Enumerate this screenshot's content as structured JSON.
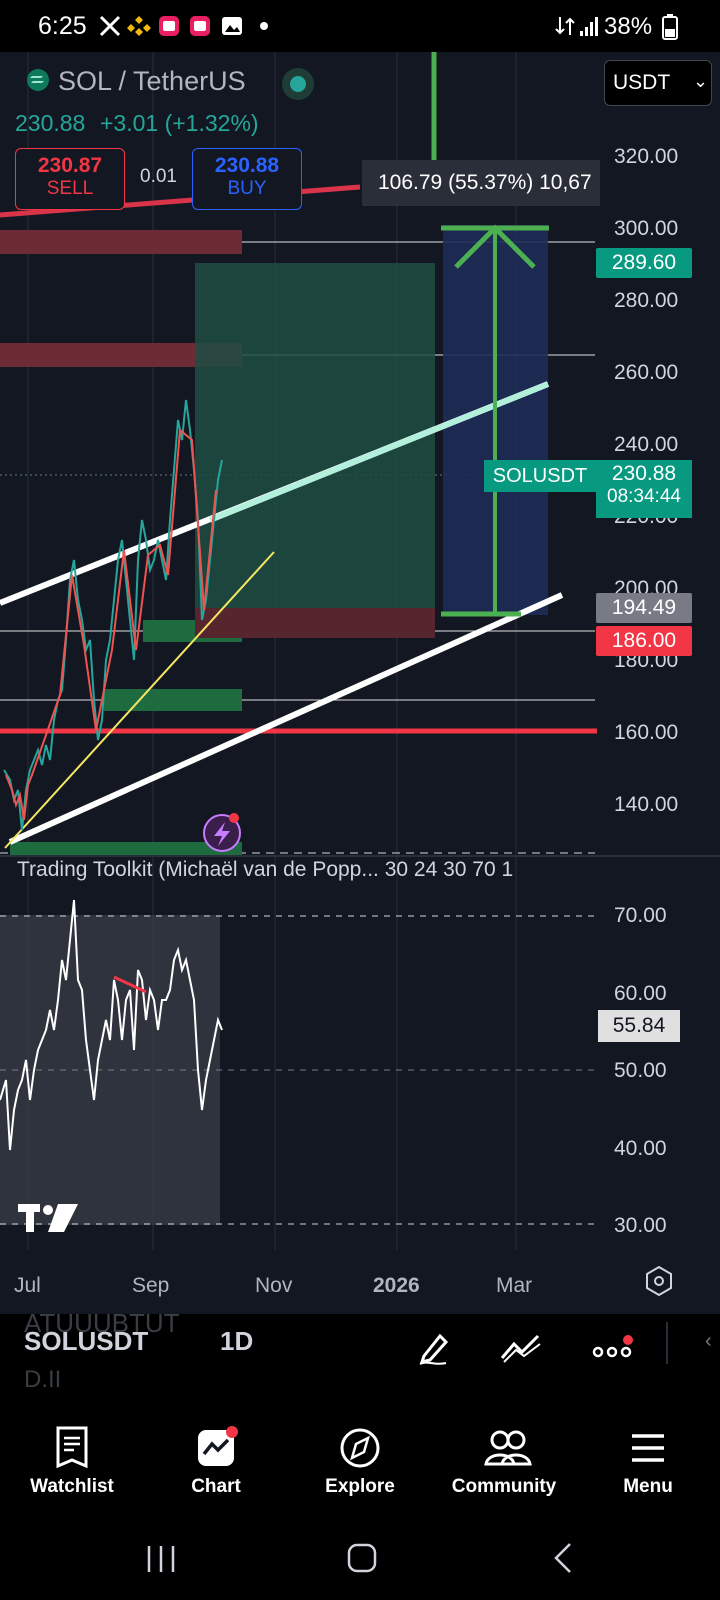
{
  "status_bar": {
    "time": "6:25",
    "battery": "38%",
    "notification_icons": [
      "x-icon",
      "binance-icon",
      "app-icon",
      "app-icon",
      "gallery-icon",
      "dot-icon"
    ]
  },
  "header": {
    "title": "SOL / TetherUS",
    "price": "230.88",
    "change": "+3.01 (+1.32%)",
    "sell_price": "230.87",
    "sell_label": "SELL",
    "spread": "0.01",
    "buy_price": "230.88",
    "buy_label": "BUY",
    "currency": "USDT"
  },
  "measure_label": "106.79 (55.37%) 10,67",
  "price_axis": [
    "320.00",
    "300.00",
    "280.00",
    "260.00",
    "240.00",
    "220.00",
    "200.00",
    "180.00",
    "160.00",
    "140.00"
  ],
  "badges": {
    "b1": "289.60",
    "symbol": "SOLUSDT",
    "last_price": "230.88",
    "countdown": "08:34:44",
    "b2": "194.49",
    "b3": "186.00"
  },
  "indicator": {
    "title": "Trading Toolkit (Michaël van de Popp... 30 24 30 70 1",
    "value": "55.84",
    "axis": [
      "70.00",
      "60.00",
      "50.00",
      "40.00",
      "30.00"
    ]
  },
  "time_axis": [
    "Jul",
    "Sep",
    "Nov",
    "2026",
    "Mar"
  ],
  "toolbar": {
    "symbol": "SOLUSDT",
    "interval": "1D",
    "ghost_top": "ATUUUBTUT",
    "ghost_bottom": "D.II"
  },
  "nav": {
    "watchlist": "Watchlist",
    "chart": "Chart",
    "explore": "Explore",
    "community": "Community",
    "menu": "Menu"
  },
  "colors": {
    "bg": "#131722",
    "green": "#26a69a",
    "red": "#f23645",
    "blue": "#2962ff",
    "accent_green": "#4caf50"
  }
}
